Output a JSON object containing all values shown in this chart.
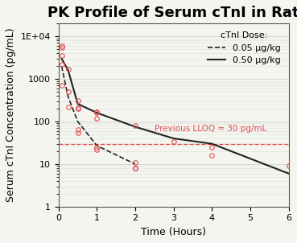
{
  "title": "PK Profile of Serum cTnI in Rat",
  "xlabel": "Time (Hours)",
  "ylabel": "Serum cTnI Concentration (pg/mL)",
  "lloq_value": 30,
  "lloq_label": "Previous LLOQ = 30 pg/mL",
  "lloq_color": "#e05050",
  "ylim_log": [
    1,
    20000
  ],
  "xlim": [
    0,
    6
  ],
  "xticks": [
    0,
    1,
    2,
    3,
    4,
    5,
    6
  ],
  "background_color": "#f5f5f0",
  "line_color": "#222222",
  "circle_color": "#e05050",
  "legend_title": "cTnI Dose:",
  "legend_labels": [
    "0.05 μg/kg",
    "0.50 μg/kg"
  ],
  "dose_low_scatter_x": [
    0.08,
    0.08,
    0.25,
    0.25,
    0.5,
    0.5,
    0.5,
    1.0,
    1.0,
    1.0,
    2.0,
    2.0,
    2.0
  ],
  "dose_low_scatter_y": [
    5500,
    700,
    500,
    220,
    210,
    65,
    55,
    120,
    25,
    22,
    11,
    8,
    8
  ],
  "dose_high_scatter_x": [
    0.08,
    0.08,
    0.08,
    0.25,
    0.5,
    0.5,
    1.0,
    1.0,
    2.0,
    3.0,
    4.0,
    4.0,
    6.0
  ],
  "dose_high_scatter_y": [
    6000,
    3500,
    2200,
    1700,
    310,
    200,
    165,
    160,
    80,
    33,
    25,
    16,
    9
  ],
  "dose_low_line_x": [
    0.08,
    0.25,
    0.5,
    1.0,
    2.0
  ],
  "dose_low_line_y": [
    2000,
    380,
    100,
    27,
    10
  ],
  "dose_high_line_x": [
    0.08,
    0.25,
    0.5,
    1.0,
    2.0,
    3.0,
    4.0,
    6.0
  ],
  "dose_high_line_y": [
    3000,
    1600,
    260,
    160,
    75,
    40,
    30,
    6
  ],
  "title_fontsize": 13,
  "axis_label_fontsize": 9,
  "tick_fontsize": 8,
  "legend_fontsize": 8
}
